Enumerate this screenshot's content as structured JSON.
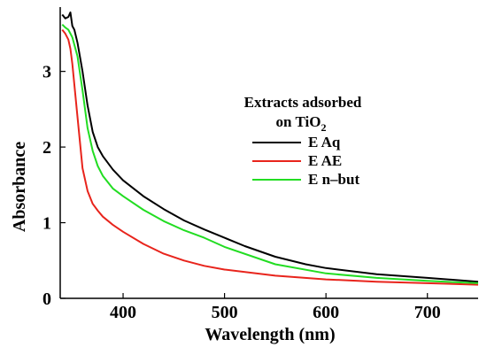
{
  "chart_data": {
    "type": "line",
    "xlabel": "Wavelength (nm)",
    "ylabel": "Absorbance",
    "xlim": [
      338,
      750
    ],
    "ylim": [
      0,
      3.85
    ],
    "x_ticks": [
      400,
      500,
      600,
      700
    ],
    "y_ticks": [
      0,
      1,
      2,
      3
    ],
    "legend": {
      "title_line1": "Extracts adsorbed",
      "title_line2_prefix": "on TiO",
      "title_line2_sub": "2",
      "placement": "center-right"
    },
    "series": [
      {
        "name": "E Aq",
        "color": "#000000",
        "x": [
          340,
          343,
          346,
          348,
          350,
          352,
          355,
          360,
          365,
          370,
          375,
          380,
          390,
          400,
          420,
          440,
          460,
          480,
          500,
          520,
          550,
          580,
          600,
          650,
          700,
          750
        ],
        "y": [
          3.75,
          3.7,
          3.72,
          3.78,
          3.6,
          3.55,
          3.38,
          3.0,
          2.55,
          2.2,
          2.0,
          1.88,
          1.7,
          1.56,
          1.35,
          1.18,
          1.03,
          0.91,
          0.8,
          0.69,
          0.55,
          0.45,
          0.4,
          0.32,
          0.27,
          0.22
        ]
      },
      {
        "name": "E AE",
        "color": "#e8241c",
        "x": [
          340,
          343,
          346,
          348,
          350,
          355,
          360,
          365,
          370,
          375,
          380,
          390,
          400,
          420,
          440,
          460,
          480,
          500,
          550,
          600,
          650,
          700,
          750
        ],
        "y": [
          3.55,
          3.5,
          3.42,
          3.3,
          3.1,
          2.4,
          1.72,
          1.42,
          1.25,
          1.16,
          1.08,
          0.97,
          0.88,
          0.72,
          0.59,
          0.5,
          0.43,
          0.38,
          0.3,
          0.25,
          0.22,
          0.2,
          0.18
        ]
      },
      {
        "name": "E n–but",
        "color": "#22dd22",
        "x": [
          340,
          343,
          346,
          348,
          350,
          355,
          360,
          365,
          370,
          375,
          380,
          390,
          400,
          420,
          440,
          460,
          480,
          500,
          550,
          600,
          650,
          700,
          750
        ],
        "y": [
          3.62,
          3.58,
          3.55,
          3.5,
          3.45,
          3.2,
          2.75,
          2.25,
          1.95,
          1.75,
          1.62,
          1.45,
          1.35,
          1.17,
          1.02,
          0.9,
          0.8,
          0.68,
          0.45,
          0.33,
          0.27,
          0.23,
          0.2
        ]
      }
    ]
  }
}
